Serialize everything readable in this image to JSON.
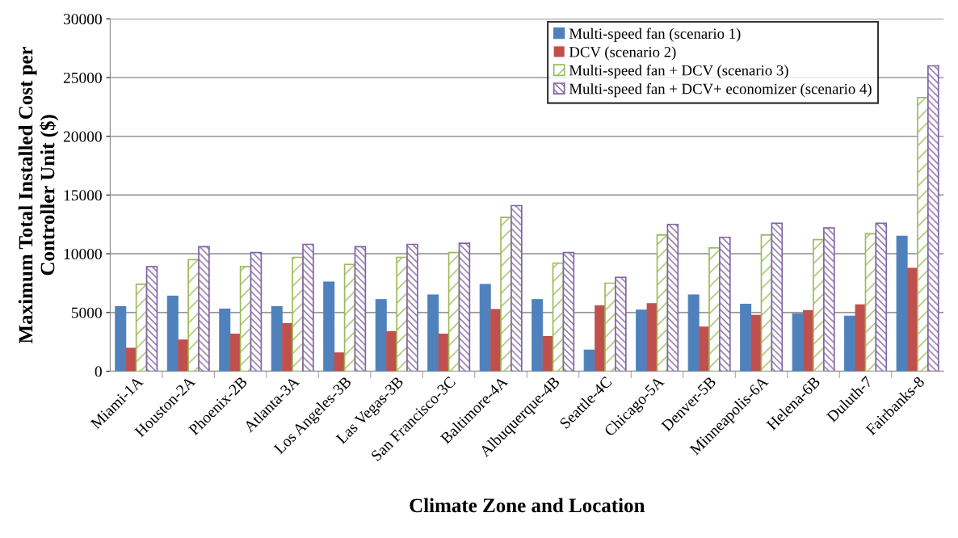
{
  "chart_data": {
    "type": "bar",
    "xlabel": "Climate Zone and Location",
    "ylabel": "Maximum Total Installed Cost per\nController Unit ($)",
    "categories": [
      "Miami-1A",
      "Houston-2A",
      "Phoenix-2B",
      "Atlanta-3A",
      "Los Angeles-3B",
      "Las Vegas-3B",
      "San Francisco-3C",
      "Baltimore-4A",
      "Albuquerque-4B",
      "Seattle-4C",
      "Chicago-5A",
      "Denver-5B",
      "Minneapolis-6A",
      "Helena-6B",
      "Duluth-7",
      "Fairbanks-8"
    ],
    "series": [
      {
        "name": "Multi-speed fan (scenario 1)",
        "color": "#4f81bd",
        "values": [
          5500,
          6400,
          5300,
          5500,
          7600,
          6100,
          6500,
          7400,
          6100,
          1800,
          5200,
          6500,
          5700,
          4900,
          4700,
          11500
        ]
      },
      {
        "name": "DCV (scenario 2)",
        "color": "#c0504d",
        "values": [
          2000,
          2700,
          3200,
          4100,
          1600,
          3400,
          3200,
          5300,
          3000,
          5600,
          5800,
          3800,
          4800,
          5200,
          5700,
          8800
        ]
      },
      {
        "name": "Multi-speed fan + DCV (scenario 3)",
        "color": "#9bbb59",
        "values": [
          7400,
          9500,
          8900,
          9700,
          9100,
          9700,
          10100,
          13100,
          9200,
          7500,
          11600,
          10500,
          11600,
          11200,
          11700,
          23300
        ]
      },
      {
        "name": "Multi-speed fan + DCV+ economizer (scenario 4)",
        "color": "#8064a2",
        "values": [
          8900,
          10600,
          10100,
          10800,
          10600,
          10800,
          10900,
          14100,
          10100,
          8000,
          12500,
          11400,
          12600,
          12200,
          12600,
          26000
        ]
      }
    ],
    "ylim": [
      0,
      30000
    ],
    "yticks": [
      0,
      5000,
      10000,
      15000,
      20000,
      25000,
      30000
    ],
    "grid": "y",
    "legend": "top right"
  }
}
